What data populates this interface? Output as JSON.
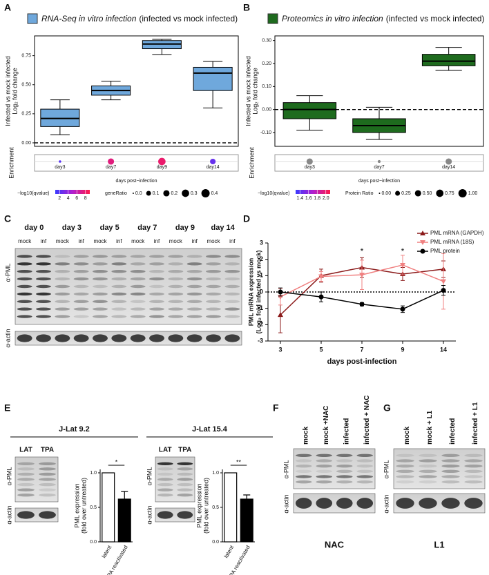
{
  "panel_labels": [
    "A",
    "B",
    "C",
    "D",
    "E",
    "F",
    "G"
  ],
  "chart_data": [
    {
      "type": "box",
      "title": [
        "RNA-Seq in vitro infection",
        "(infected vs mock infected)"
      ],
      "color": "#6fa8dc",
      "ylabel": [
        "Infected vs mock infected",
        "Log₂ fold change"
      ],
      "xlabel": "days post−infection",
      "categories": [
        "day3",
        "day7",
        "day9",
        "day14"
      ],
      "boxes": [
        {
          "min": 0.07,
          "q1": 0.14,
          "median": 0.21,
          "q3": 0.29,
          "max": 0.37
        },
        {
          "min": 0.37,
          "q1": 0.41,
          "median": 0.45,
          "q3": 0.49,
          "max": 0.53
        },
        {
          "min": 0.76,
          "q1": 0.81,
          "median": 0.85,
          "q3": 0.88,
          "max": 0.89
        },
        {
          "min": 0.3,
          "q1": 0.45,
          "median": 0.6,
          "q3": 0.65,
          "max": 0.7
        }
      ],
      "ylim": [
        -0.03,
        0.92
      ],
      "yticks": [
        {
          "value": 0,
          "label": "0.00"
        },
        {
          "value": 0.25,
          "label": "0.25"
        },
        {
          "value": 0.5,
          "label": "0.50"
        },
        {
          "value": 0.75,
          "label": "0.75"
        }
      ],
      "reference_line": 0,
      "enrichment": {
        "label": "Enrichment",
        "size": [
          0.01,
          0.2,
          0.3,
          0.15
        ],
        "qvalue": [
          2,
          7.5,
          8,
          2.5
        ]
      },
      "color_legend": {
        "title": "−log10(qvalue)",
        "range": [
          1,
          9
        ],
        "ticks": [
          2,
          4,
          6,
          8
        ],
        "colors": [
          "#3a3aff",
          "#b01ed0",
          "#ff1a4a"
        ]
      },
      "size_legend": {
        "title": "geneRatio",
        "max": 0.4,
        "values": [
          {
            "value": 0,
            "label": "0.0"
          },
          {
            "value": 0.1,
            "label": "0.1"
          },
          {
            "value": 0.2,
            "label": "0.2"
          },
          {
            "value": 0.3,
            "label": "0.3"
          },
          {
            "value": 0.4,
            "label": "0.4"
          }
        ]
      }
    },
    {
      "type": "box",
      "title": [
        "Proteomics in vitro infection",
        "(infected vs mock infected)"
      ],
      "color": "#1e6b1e",
      "ylabel": [
        "Infected vs mock infected",
        "Log₂ fold change"
      ],
      "xlabel": "days post−infection",
      "categories": [
        "day3",
        "day7",
        "day14"
      ],
      "boxes": [
        {
          "min": -0.09,
          "q1": -0.04,
          "median": 0.0,
          "q3": 0.03,
          "max": 0.06
        },
        {
          "min": -0.13,
          "q1": -0.1,
          "median": -0.07,
          "q3": -0.04,
          "max": 0.01
        },
        {
          "min": 0.17,
          "q1": 0.19,
          "median": 0.21,
          "q3": 0.24,
          "max": 0.27
        }
      ],
      "ylim": [
        -0.16,
        0.32
      ],
      "yticks": [
        {
          "value": -0.1,
          "label": "-0.10"
        },
        {
          "value": 0,
          "label": "0.00"
        },
        {
          "value": 0.1,
          "label": "0.10"
        },
        {
          "value": 0.2,
          "label": "0.20"
        },
        {
          "value": 0.3,
          "label": "0.30"
        }
      ],
      "reference_line": 0,
      "enrichment": {
        "label": "Enrichment",
        "size": [
          0.5,
          0.05,
          0.5
        ],
        "color": "#888888"
      },
      "color_legend": {
        "title": "−log10(qvalue)",
        "range": [
          1.3,
          2.1
        ],
        "ticks": [
          1.4,
          1.6,
          1.8,
          {
            "value": 2,
            "label": "2.0"
          }
        ],
        "colors": [
          "#3a3aff",
          "#b01ed0",
          "#ff1a4a"
        ]
      },
      "size_legend": {
        "title": "Protein Ratio",
        "max": 1,
        "values": [
          {
            "value": 0,
            "label": "0.00"
          },
          {
            "value": 0.25,
            "label": "0.25"
          },
          {
            "value": 0.5,
            "label": "0.50"
          },
          {
            "value": 0.75,
            "label": "0.75"
          },
          {
            "value": 1,
            "label": "1.00"
          }
        ]
      }
    },
    {
      "type": "line",
      "ylabel": [
        "PML mRNA expression",
        "(Log₂ fold infected vs mock)"
      ],
      "xlabel": "days post-infection",
      "categories": [
        "3",
        "5",
        "7",
        "9",
        "14"
      ],
      "ylim": [
        -3,
        3
      ],
      "yticks": [
        -3,
        -2,
        -1,
        0,
        1,
        2,
        3
      ],
      "reference_line": 0,
      "series": [
        {
          "name": "PML mRNA (GAPDH)",
          "color": "#8b1a1a",
          "marker": "triangle-up",
          "values": [
            -1.4,
            1.0,
            1.5,
            1.1,
            1.4
          ],
          "errors": [
            1.1,
            0.4,
            0.6,
            0.4,
            0.5
          ]
        },
        {
          "name": "PML mRNA (18S)",
          "color": "#f08080",
          "marker": "triangle-down",
          "values": [
            -0.3,
            0.95,
            1.05,
            1.65,
            0.65
          ],
          "errors": [
            0.5,
            0.3,
            0.9,
            0.6,
            1.7
          ]
        },
        {
          "name": "PML protein",
          "color": "#000000",
          "marker": "circle",
          "values": [
            0.0,
            -0.3,
            -0.75,
            -1.05,
            0.1
          ],
          "errors": [
            0.25,
            0.3,
            0.1,
            0.2,
            0.3
          ]
        }
      ],
      "annotations": [
        {
          "text": "*",
          "category": "7",
          "y": 2.45
        },
        {
          "text": "*",
          "category": "9",
          "y": 2.45
        }
      ]
    },
    {
      "type": "bar",
      "ylabel": [
        "PML expression",
        "(fold over untreated)"
      ],
      "categories": [
        "latent",
        "TPA reactivated"
      ],
      "values": [
        1.0,
        0.62
      ],
      "errors": [
        null,
        0.11
      ],
      "colors": [
        "#ffffff",
        "#000000"
      ],
      "ylim": [
        0,
        1.05
      ],
      "yticks": [
        {
          "value": 0,
          "label": "0.0"
        },
        {
          "value": 0.5,
          "label": "0.5"
        },
        {
          "value": 1,
          "label": "1.0"
        }
      ],
      "significance": "*"
    },
    {
      "type": "bar",
      "ylabel": [
        "PML expression",
        "(fold over untreated)"
      ],
      "categories": [
        "latent",
        "TPA reactivated"
      ],
      "values": [
        1.0,
        0.62
      ],
      "errors": [
        null,
        0.06
      ],
      "colors": [
        "#ffffff",
        "#000000"
      ],
      "ylim": [
        0,
        1.05
      ],
      "yticks": [
        {
          "value": 0,
          "label": "0.0"
        },
        {
          "value": 0.5,
          "label": "0.5"
        },
        {
          "value": 1,
          "label": "1.0"
        }
      ],
      "significance": "**"
    }
  ],
  "blots": {
    "C": {
      "days": [
        "day 0",
        "day 3",
        "day 5",
        "day 7",
        "day 9",
        "day 14"
      ],
      "lanes": [
        "mock",
        "inf"
      ],
      "probes": [
        "α-PML",
        "α-actin"
      ]
    },
    "E": [
      {
        "title": "J-Lat 9.2",
        "lanes": [
          "LAT",
          "TPA"
        ],
        "probes": [
          "α-PML",
          "α-actin"
        ]
      },
      {
        "title": "J-Lat 15.4",
        "lanes": [
          "LAT",
          "TPA"
        ],
        "probes": [
          "α-PML",
          "α-actin"
        ]
      }
    ],
    "F": {
      "lanes": [
        "mock",
        "mock +NAC",
        "infected",
        "infected + NAC"
      ],
      "probes": [
        "α-PML",
        "α-actin"
      ],
      "label": "NAC"
    },
    "G": {
      "lanes": [
        "mock",
        "mock + L1",
        "infected",
        "infected + L1"
      ],
      "probes": [
        "α-PML",
        "α-actin"
      ],
      "label": "L1"
    }
  }
}
